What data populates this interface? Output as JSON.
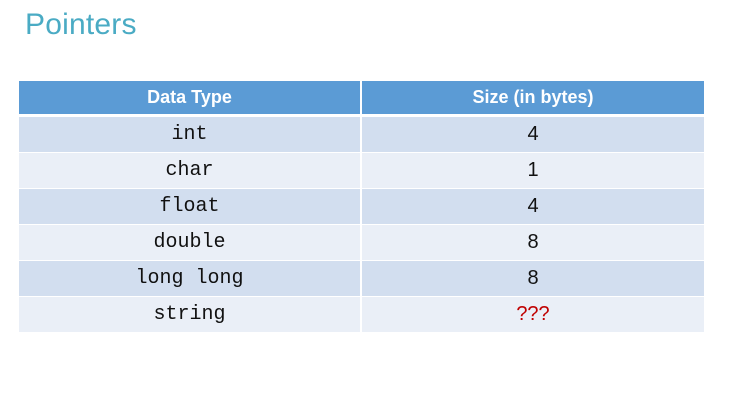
{
  "slide": {
    "title": "Pointers"
  },
  "table": {
    "headers": {
      "type": "Data Type",
      "size": "Size (in bytes)"
    },
    "rows": [
      {
        "type": "int",
        "size": "4"
      },
      {
        "type": "char",
        "size": "1"
      },
      {
        "type": "float",
        "size": "4"
      },
      {
        "type": "double",
        "size": "8"
      },
      {
        "type": "long long",
        "size": "8"
      },
      {
        "type": "string",
        "size": "???"
      }
    ]
  },
  "colors": {
    "title": "#4aabc4",
    "header_bg": "#5b9bd5",
    "row_band_dark": "#d2deef",
    "row_band_light": "#eaeff7",
    "unknown_value": "#c00000"
  }
}
